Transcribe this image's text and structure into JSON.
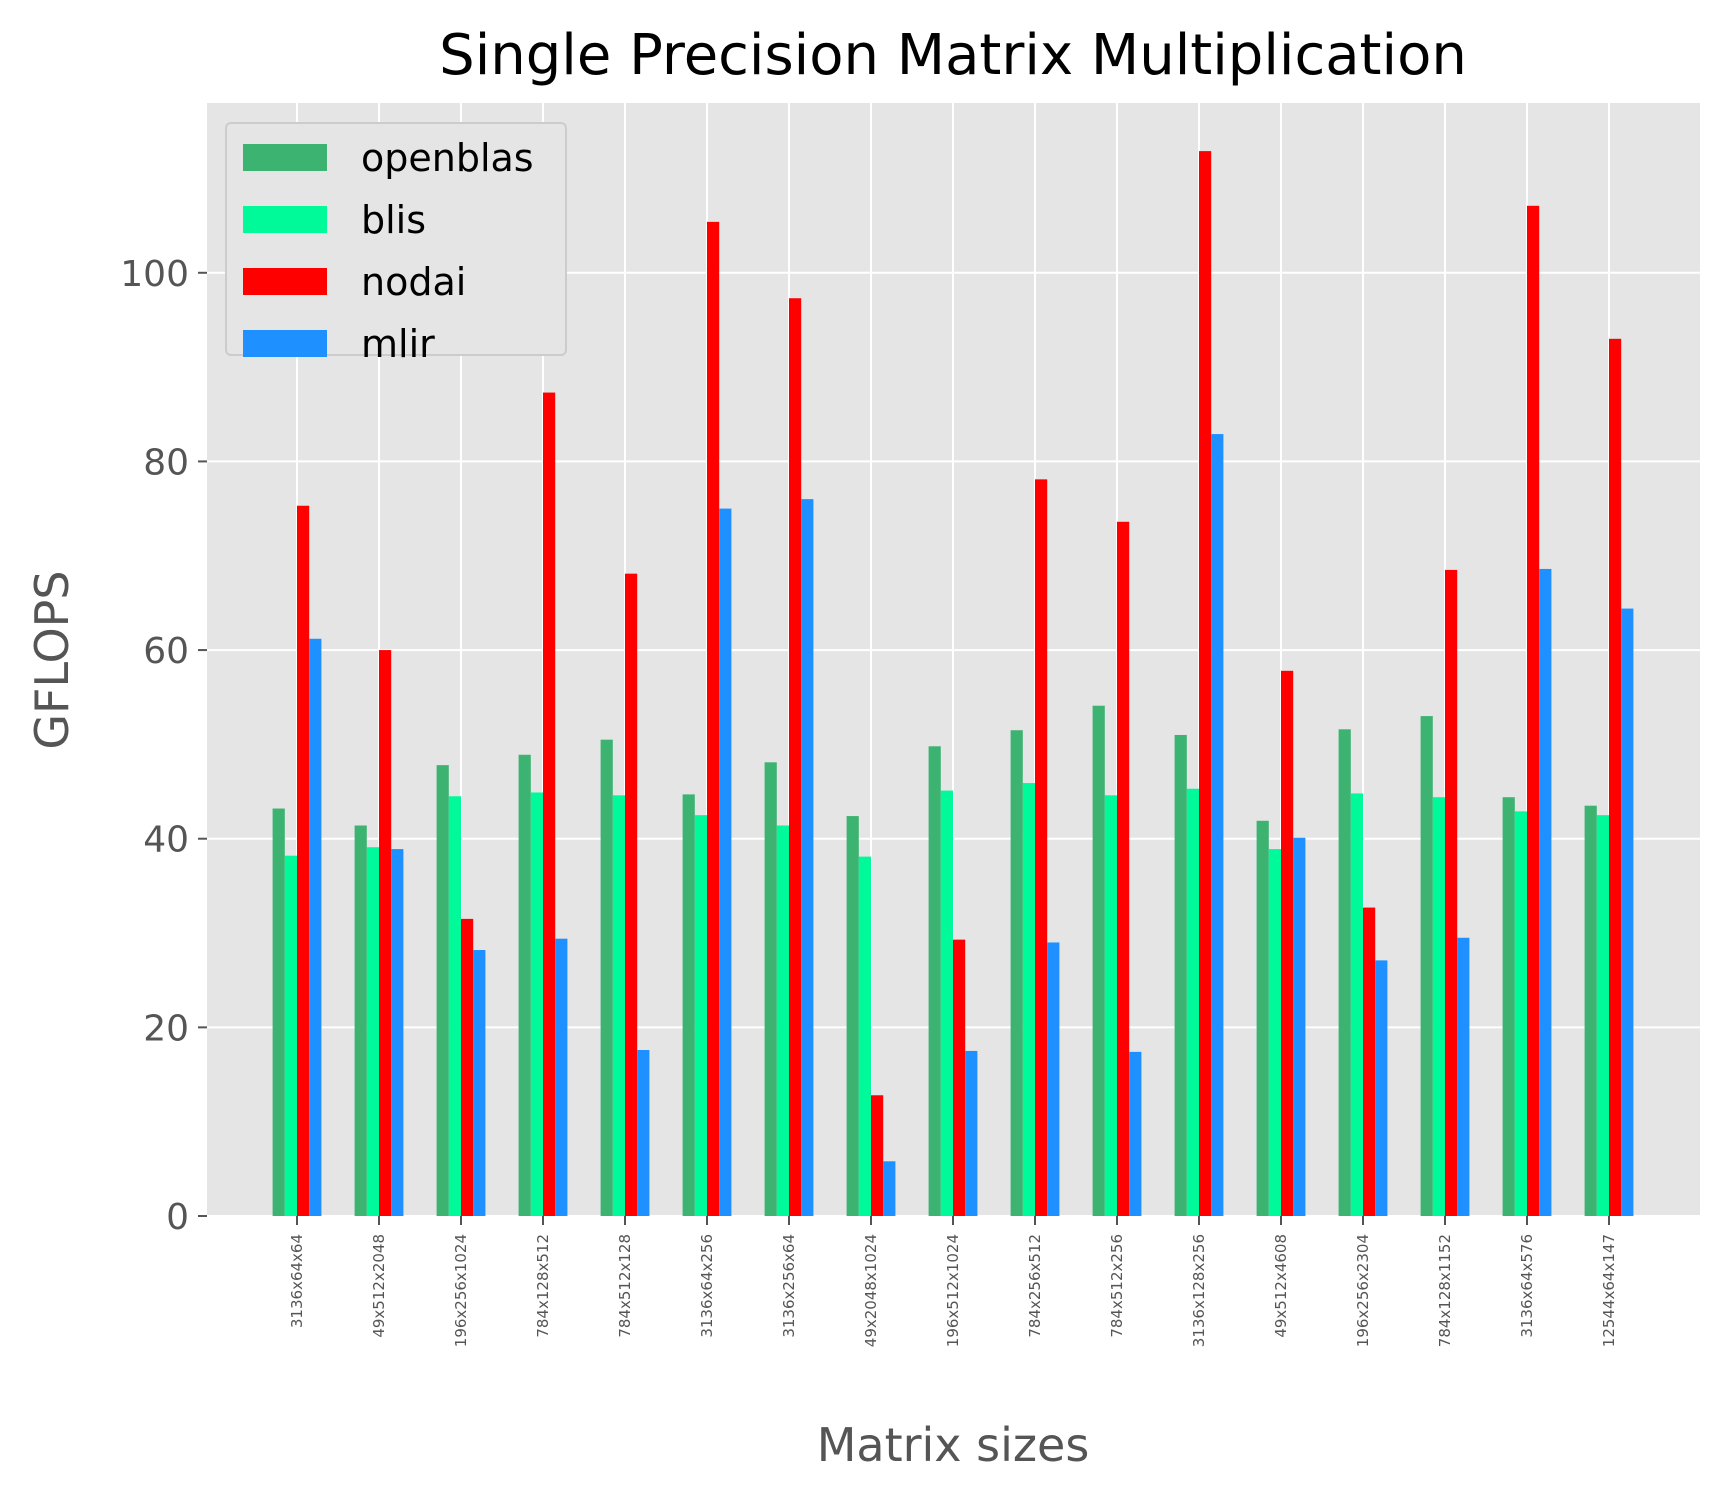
{
  "chart_data": {
    "type": "bar",
    "title": "Single Precision Matrix Multiplication",
    "xlabel": "Matrix sizes",
    "ylabel": "GFLOPS",
    "ylim": [
      0,
      118
    ],
    "yticks": [
      0,
      20,
      40,
      60,
      80,
      100
    ],
    "grid": true,
    "legend_position": "top-left",
    "background": "#e5e5e5",
    "categories": [
      "3136x64x64",
      "49x512x2048",
      "196x256x1024",
      "784x128x512",
      "784x512x128",
      "3136x64x256",
      "3136x256x64",
      "49x2048x1024",
      "196x512x1024",
      "784x256x512",
      "784x512x256",
      "3136x128x256",
      "49x512x4608",
      "196x256x2304",
      "784x128x1152",
      "3136x64x576",
      "12544x64x147"
    ],
    "series": [
      {
        "name": "openblas",
        "color": "#3cb371",
        "values": [
          43.2,
          41.4,
          47.8,
          48.9,
          50.5,
          44.7,
          48.1,
          42.4,
          49.8,
          51.5,
          54.1,
          51.0,
          41.9,
          51.6,
          53.0,
          44.4,
          43.5
        ]
      },
      {
        "name": "blis",
        "color": "#00fa9a",
        "values": [
          38.2,
          39.1,
          44.5,
          44.9,
          44.6,
          42.5,
          41.4,
          38.1,
          45.1,
          45.9,
          44.6,
          45.3,
          38.9,
          44.8,
          44.4,
          42.9,
          42.5
        ]
      },
      {
        "name": "nodai",
        "color": "#ff0000",
        "values": [
          75.3,
          60.0,
          31.5,
          87.3,
          68.1,
          105.4,
          97.3,
          12.8,
          29.3,
          78.1,
          73.6,
          112.9,
          57.8,
          32.7,
          68.5,
          107.1,
          93.0
        ]
      },
      {
        "name": "mlir",
        "color": "#1e90ff",
        "values": [
          61.2,
          38.9,
          28.2,
          29.4,
          17.6,
          75.0,
          76.0,
          5.8,
          17.5,
          29.0,
          17.4,
          82.9,
          40.1,
          27.1,
          29.5,
          68.6,
          64.4
        ]
      }
    ]
  }
}
